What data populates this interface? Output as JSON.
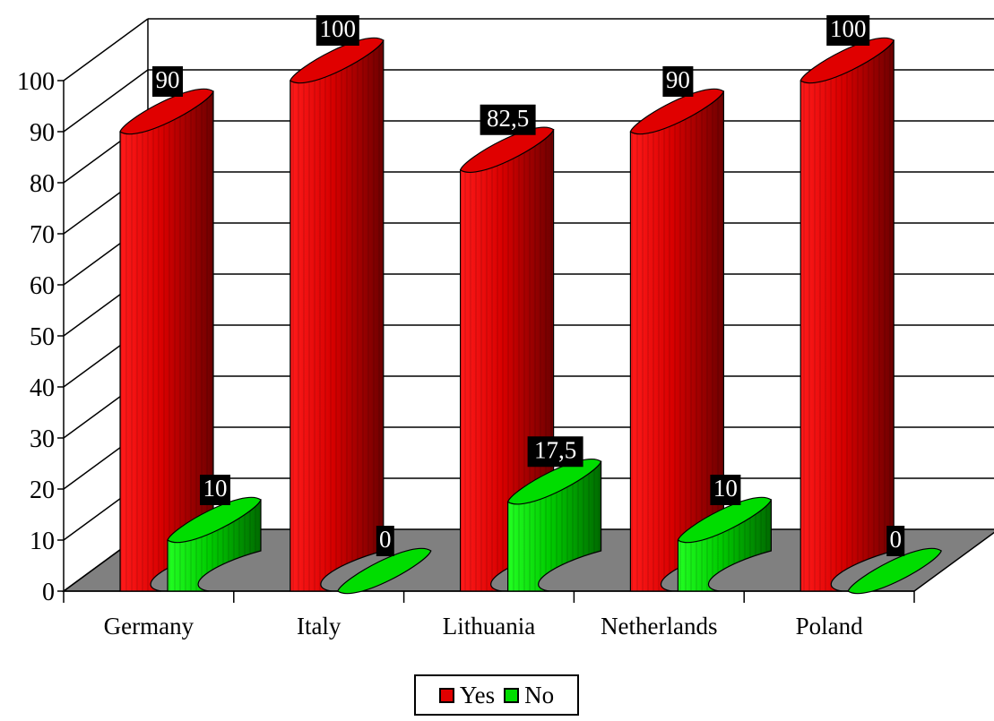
{
  "chart_data": {
    "type": "bar",
    "categories": [
      "Germany",
      "Italy",
      "Lithuania",
      "Netherlands",
      "Poland"
    ],
    "series": [
      {
        "name": "Yes",
        "color": "#e00000",
        "values": [
          90,
          100,
          82.5,
          90,
          100
        ],
        "labels": [
          "90",
          "100",
          "82,5",
          "90",
          "100"
        ]
      },
      {
        "name": "No",
        "color": "#00dd00",
        "values": [
          10,
          0,
          17.5,
          10,
          0
        ],
        "labels": [
          "10",
          "0",
          "17,5",
          "10",
          "0"
        ]
      }
    ],
    "ylim": [
      0,
      100
    ],
    "yticks": [
      "0",
      "10",
      "20",
      "30",
      "40",
      "50",
      "60",
      "70",
      "80",
      "90",
      "100"
    ],
    "style": "3d-cylinder",
    "grid": true,
    "legend": "bottom",
    "floor_color": "#808080"
  }
}
